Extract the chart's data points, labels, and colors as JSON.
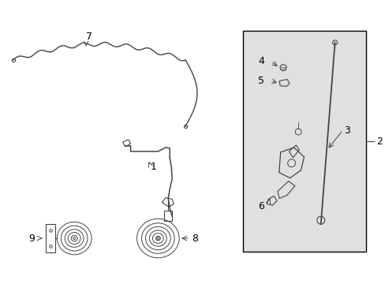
{
  "background_color": "#ffffff",
  "border_color": "#000000",
  "line_color": "#444444",
  "label_color": "#000000",
  "box_fill": "#e0e0e0",
  "figsize": [
    4.89,
    3.6
  ],
  "dpi": 100
}
